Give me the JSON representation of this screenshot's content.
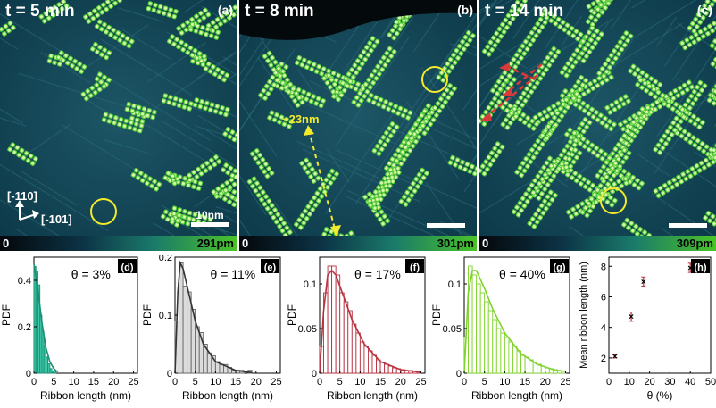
{
  "stm_panels": [
    {
      "id": "a",
      "label": "(a)",
      "time": "t = 5 min",
      "cbar_min": "0",
      "cbar_max": "291pm",
      "scalebar": "10nm"
    },
    {
      "id": "b",
      "label": "(b)",
      "time": "t = 8 min",
      "cbar_min": "0",
      "cbar_max": "301pm",
      "annotation": "~23nm"
    },
    {
      "id": "c",
      "label": "(c)",
      "time": "t = 14 min",
      "cbar_min": "0",
      "cbar_max": "309pm"
    }
  ],
  "directions": {
    "d1": "[-110]",
    "d2": "[-101]"
  },
  "colors": {
    "ring": "#f2ea2a",
    "arrow_red": "#d83a3a",
    "cyan_fill": "#3fc9a8",
    "gray_fill": "#dcdcdc",
    "red_hist": "#b8323f",
    "green_hist": "#7fd32a"
  },
  "chart_data": [
    {
      "type": "bar",
      "id": "d",
      "label": "(d)",
      "annotation": "θ = 3%",
      "ylabel": "PDF",
      "xlabel": "Ribbon length (nm)",
      "xlim": [
        0,
        26
      ],
      "ylim": [
        0,
        0.5
      ],
      "xticks": [
        0,
        5,
        10,
        15,
        20,
        25
      ],
      "yticks": [
        0,
        0.2,
        0.4
      ],
      "bin_width": 0.5,
      "values": [
        0.46,
        0.44,
        0.38,
        0.25,
        0.18,
        0.12,
        0.07,
        0.04,
        0.02,
        0.01,
        0.01
      ],
      "fit": [
        [
          0,
          0.47
        ],
        [
          1,
          0.36
        ],
        [
          2,
          0.22
        ],
        [
          3,
          0.11
        ],
        [
          4,
          0.05
        ],
        [
          5,
          0.02
        ],
        [
          6,
          0.005
        ]
      ]
    },
    {
      "type": "bar",
      "id": "e",
      "label": "(e)",
      "annotation": "θ = 11%",
      "ylabel": "PDF",
      "xlabel": "Ribbon length (nm)",
      "xlim": [
        0,
        26
      ],
      "ylim": [
        0,
        0.2
      ],
      "xticks": [
        0,
        5,
        10,
        15,
        20,
        25
      ],
      "yticks": [
        0,
        0.1,
        0.2
      ],
      "bin_width": 1,
      "values": [
        0.09,
        0.19,
        0.15,
        0.14,
        0.11,
        0.08,
        0.07,
        0.05,
        0.035,
        0.03,
        0.02,
        0.015,
        0.015,
        0.01,
        0.005,
        0.005,
        0.005,
        0,
        0.005
      ],
      "fit": [
        [
          0,
          0.0
        ],
        [
          0.7,
          0.14
        ],
        [
          1.3,
          0.19
        ],
        [
          2,
          0.18
        ],
        [
          3,
          0.15
        ],
        [
          5,
          0.09
        ],
        [
          7,
          0.05
        ],
        [
          10,
          0.02
        ],
        [
          15,
          0.005
        ],
        [
          19,
          0.001
        ]
      ]
    },
    {
      "type": "bar",
      "id": "f",
      "label": "(f)",
      "annotation": "θ = 17%",
      "ylabel": "PDF",
      "xlabel": "Ribbon length (nm)",
      "xlim": [
        0,
        26
      ],
      "ylim": [
        0,
        0.13
      ],
      "xticks": [
        0,
        5,
        10,
        15,
        20,
        25
      ],
      "yticks": [
        0,
        0.05,
        0.1
      ],
      "bin_width": 1,
      "values": [
        0.03,
        0.09,
        0.12,
        0.12,
        0.11,
        0.09,
        0.08,
        0.07,
        0.055,
        0.045,
        0.035,
        0.03,
        0.025,
        0.02,
        0.015,
        0.012,
        0.01,
        0.008,
        0.006,
        0.005,
        0.004,
        0.003,
        0.003,
        0.002,
        0.002
      ],
      "fit": [
        [
          0,
          0.0
        ],
        [
          1,
          0.07
        ],
        [
          2,
          0.11
        ],
        [
          3,
          0.115
        ],
        [
          4,
          0.11
        ],
        [
          6,
          0.085
        ],
        [
          8,
          0.06
        ],
        [
          11,
          0.033
        ],
        [
          15,
          0.013
        ],
        [
          20,
          0.004
        ],
        [
          25,
          0.001
        ]
      ]
    },
    {
      "type": "bar",
      "id": "g",
      "label": "(g)",
      "annotation": "θ = 40%",
      "ylabel": "PDF",
      "xlabel": "Ribbon length (nm)",
      "xlim": [
        0,
        26
      ],
      "ylim": [
        0,
        0.13
      ],
      "xticks": [
        0,
        5,
        10,
        15,
        20,
        25
      ],
      "yticks": [
        0,
        0.05,
        0.1
      ],
      "bin_width": 1,
      "values": [
        0.04,
        0.12,
        0.11,
        0.1,
        0.09,
        0.08,
        0.07,
        0.06,
        0.05,
        0.045,
        0.04,
        0.035,
        0.03,
        0.025,
        0.02,
        0.018,
        0.015,
        0.012,
        0.01,
        0.008,
        0.006,
        0.005,
        0.004,
        0.003,
        0.002
      ],
      "fit": [
        [
          0,
          0.0
        ],
        [
          1,
          0.09
        ],
        [
          2,
          0.115
        ],
        [
          3,
          0.115
        ],
        [
          5,
          0.095
        ],
        [
          7,
          0.072
        ],
        [
          10,
          0.045
        ],
        [
          14,
          0.022
        ],
        [
          18,
          0.01
        ],
        [
          22,
          0.004
        ],
        [
          25,
          0.002
        ]
      ]
    },
    {
      "type": "scatter",
      "id": "h",
      "label": "(h)",
      "ylabel": "Mean ribbon length (nm)",
      "xlabel": "θ (%)",
      "xlim": [
        0,
        50
      ],
      "ylim": [
        1,
        8.6
      ],
      "xticks": [
        0,
        10,
        20,
        30,
        40,
        50
      ],
      "yticks": [
        2,
        4,
        6,
        8
      ],
      "points": [
        {
          "x": 3,
          "y": 2.1,
          "err": 0.1
        },
        {
          "x": 11,
          "y": 4.7,
          "err": 0.3
        },
        {
          "x": 17,
          "y": 7.0,
          "err": 0.3
        },
        {
          "x": 40,
          "y": 7.9,
          "err": 0.3
        }
      ]
    }
  ]
}
